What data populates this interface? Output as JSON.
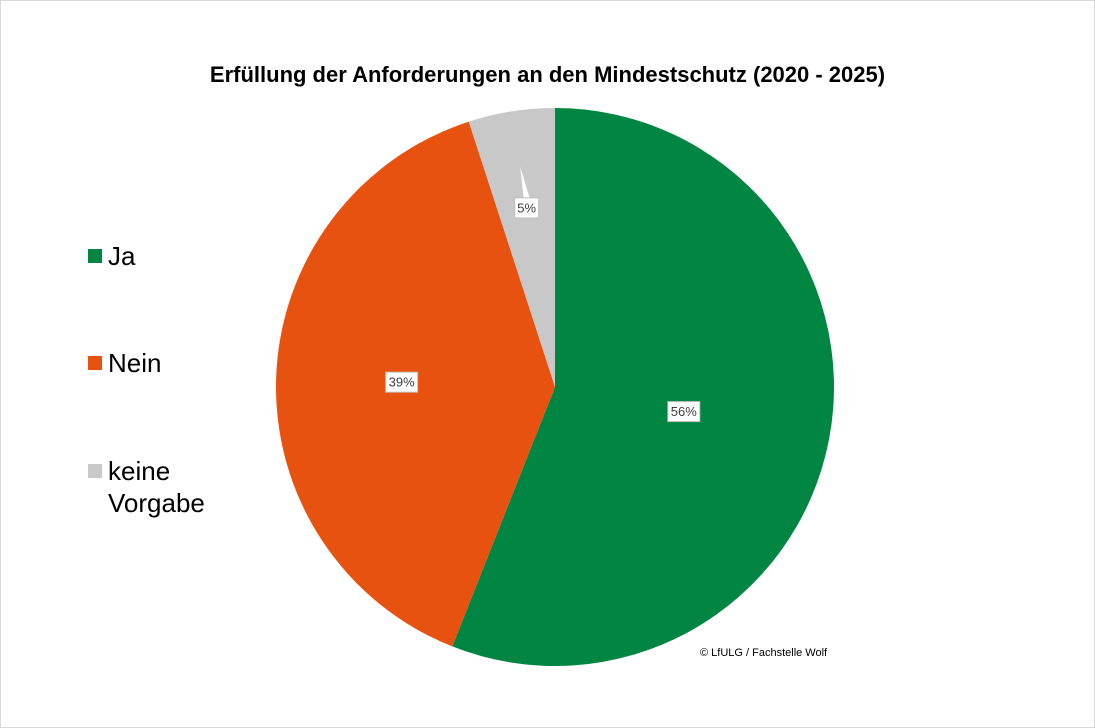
{
  "chart_data": {
    "type": "pie",
    "title": "Erfüllung der Anforderungen an den Mindestschutz (2020 - 2025)",
    "categories": [
      "Ja",
      "Nein",
      "keine Vorgabe"
    ],
    "values": [
      56,
      39,
      5
    ],
    "data_labels": [
      "56%",
      "39%",
      "5%"
    ],
    "colors": [
      "#008542",
      "#e85211",
      "#c8c8c8"
    ],
    "legend_position": "left",
    "start_angle": "top, clockwise"
  },
  "footer": {
    "copyright": "© LfULG / Fachstelle Wolf"
  }
}
